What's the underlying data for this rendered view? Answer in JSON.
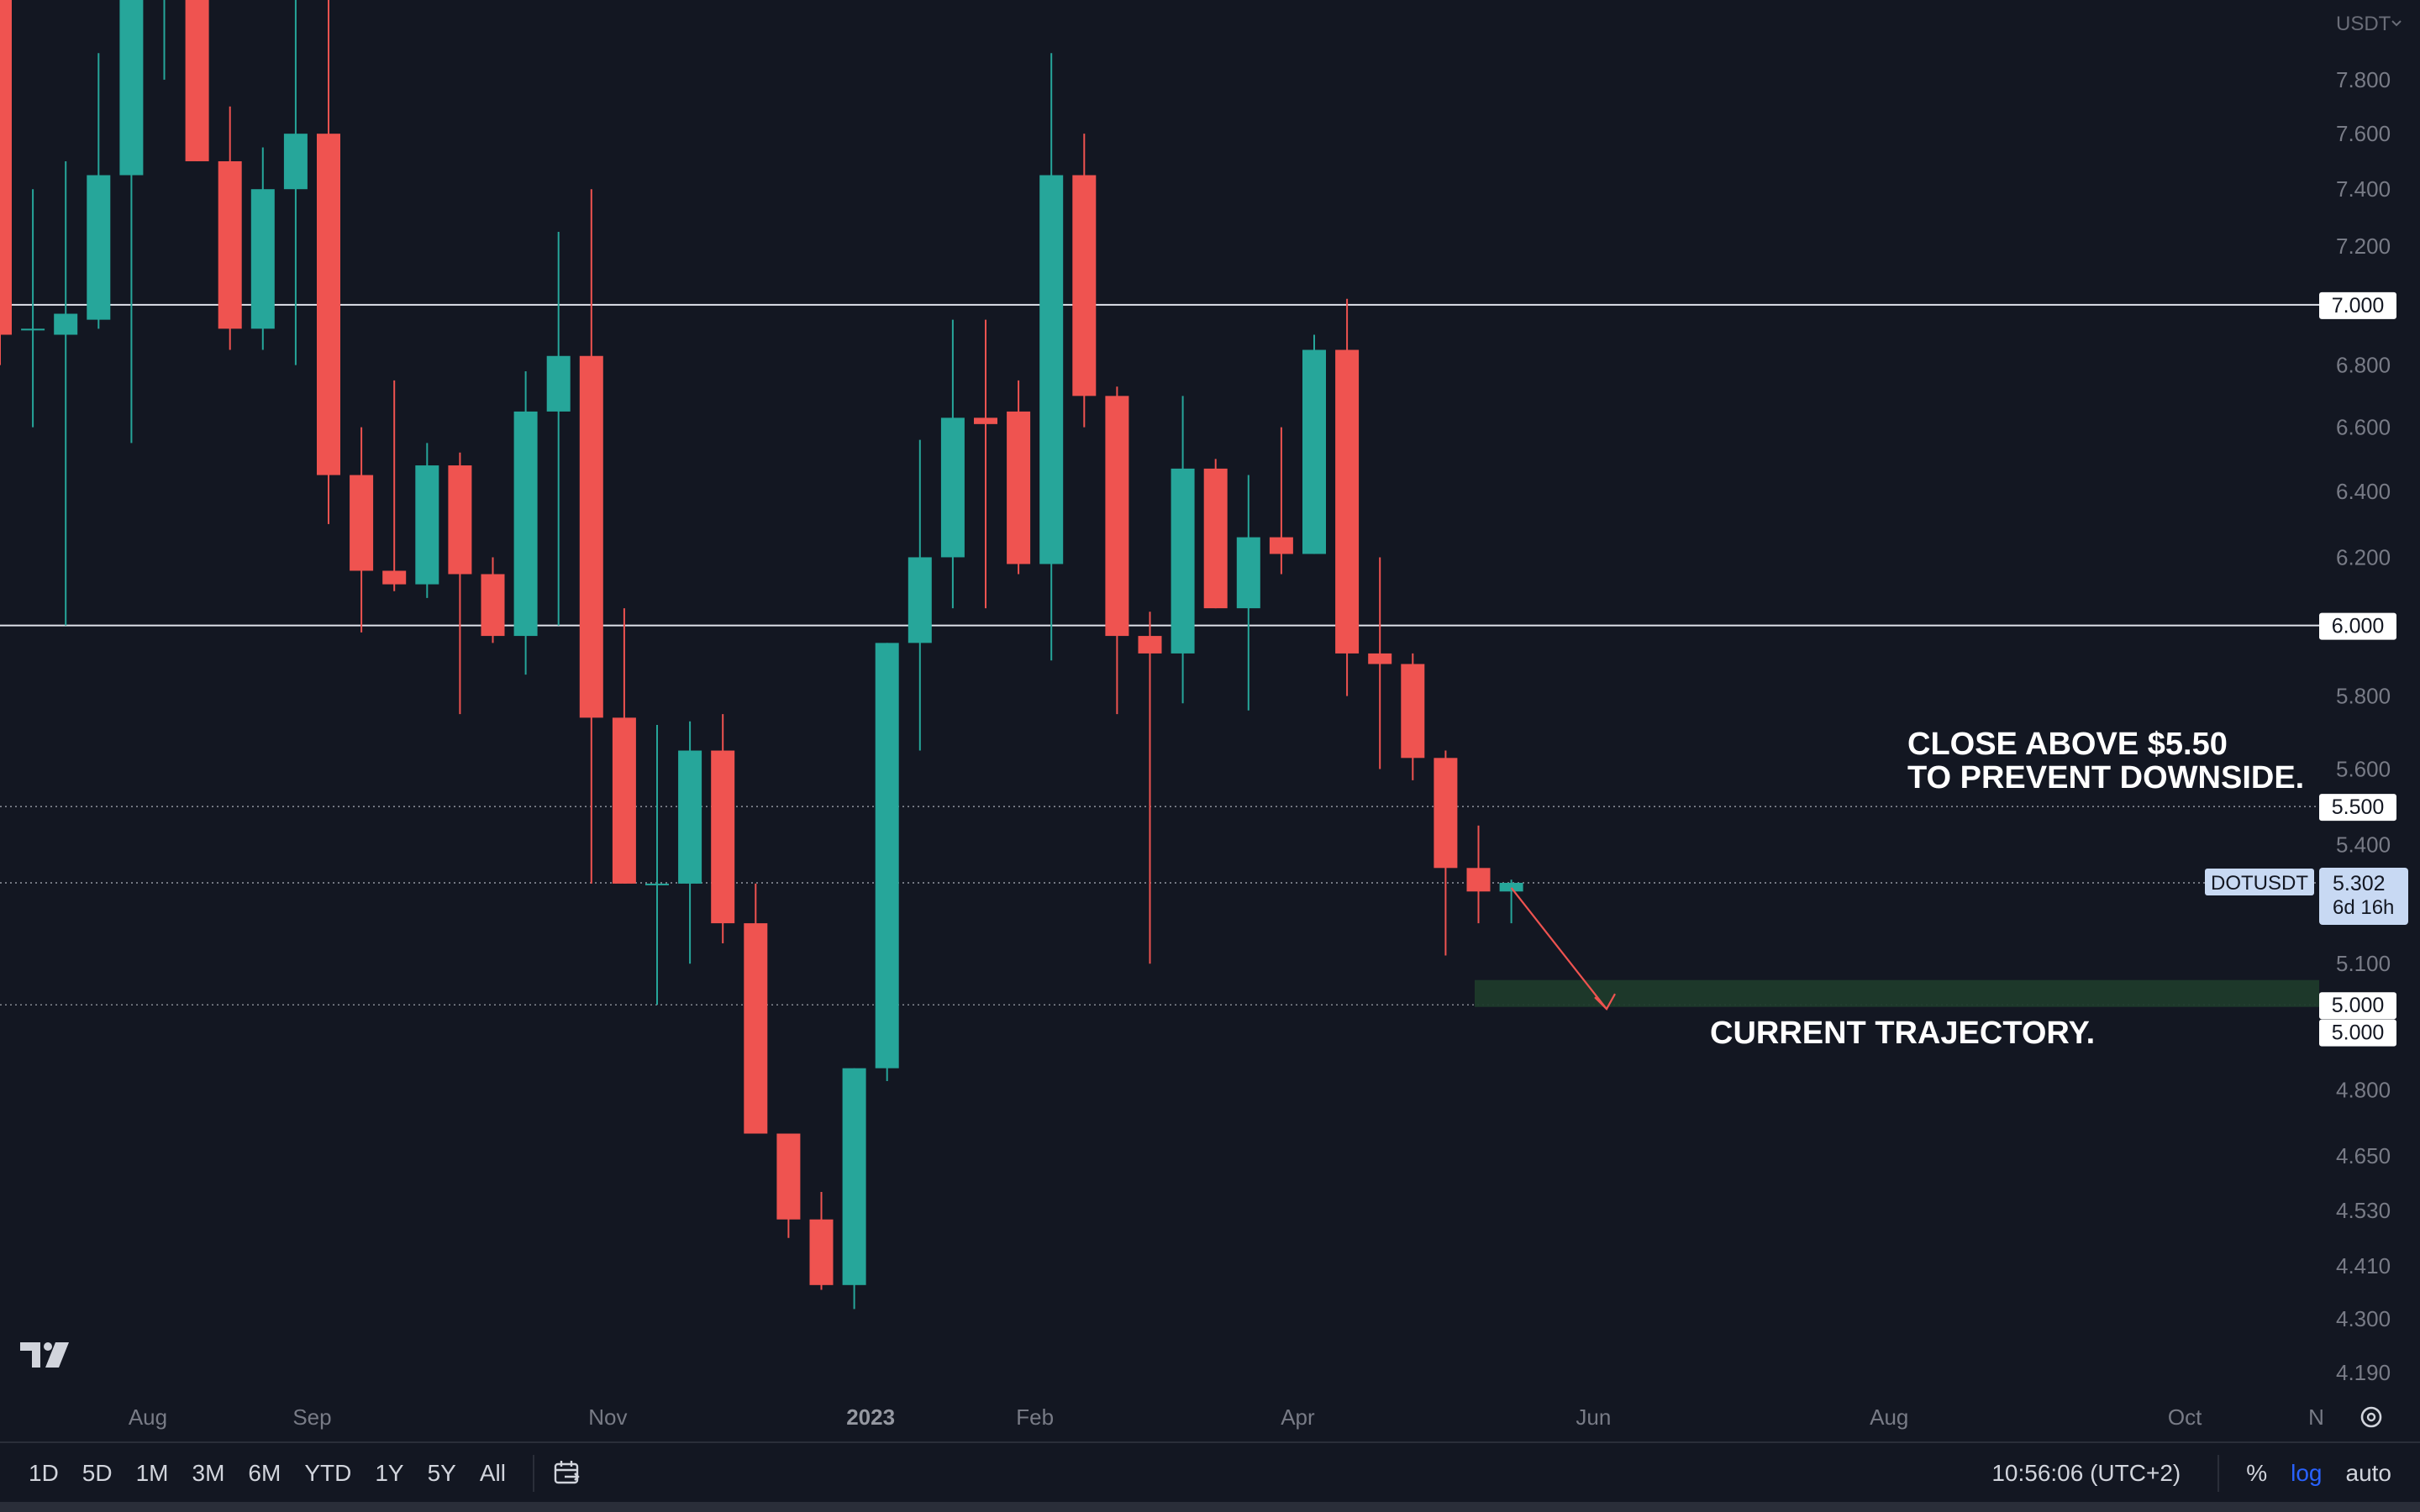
{
  "chart_data": {
    "type": "candlestick",
    "symbol": "DOTUSDT",
    "currency": "USDT",
    "scale": "log",
    "y_range": [
      4.19,
      7.85
    ],
    "y_ticks": [
      "7.800",
      "7.600",
      "7.400",
      "7.200",
      "6.800",
      "6.600",
      "6.400",
      "6.200",
      "5.800",
      "5.600",
      "5.400",
      "5.100",
      "4.800",
      "4.650",
      "4.530",
      "4.410",
      "4.300",
      "4.190"
    ],
    "x_labels": [
      {
        "label": "Aug",
        "idx": 4.5
      },
      {
        "label": "Sep",
        "idx": 9.5
      },
      {
        "label": "Nov",
        "idx": 18.5
      },
      {
        "label": "2023",
        "idx": 26.5,
        "bold": true
      },
      {
        "label": "Feb",
        "idx": 31.5
      },
      {
        "label": "Apr",
        "idx": 39.5
      },
      {
        "label": "Jun",
        "idx": 48.5
      },
      {
        "label": "Aug",
        "idx": 57.5
      },
      {
        "label": "Oct",
        "idx": 66.5
      },
      {
        "label": "N",
        "idx": 70.5
      }
    ],
    "candles": [
      {
        "o": 8.2,
        "h": 8.4,
        "l": 6.8,
        "c": 6.9
      },
      {
        "o": 6.92,
        "h": 7.4,
        "l": 6.6,
        "c": 6.92
      },
      {
        "o": 6.9,
        "h": 7.5,
        "l": 6.0,
        "c": 6.97
      },
      {
        "o": 6.95,
        "h": 7.9,
        "l": 6.92,
        "c": 7.45
      },
      {
        "o": 7.45,
        "h": 8.3,
        "l": 6.55,
        "c": 8.2
      },
      {
        "o": 8.2,
        "h": 8.4,
        "l": 7.8,
        "c": 8.2
      },
      {
        "o": 8.2,
        "h": 8.4,
        "l": 7.5,
        "c": 7.5
      },
      {
        "o": 7.5,
        "h": 7.7,
        "l": 6.85,
        "c": 6.92
      },
      {
        "o": 6.92,
        "h": 7.55,
        "l": 6.85,
        "c": 7.4
      },
      {
        "o": 7.4,
        "h": 8.4,
        "l": 6.8,
        "c": 7.6
      },
      {
        "o": 7.6,
        "h": 8.2,
        "l": 6.3,
        "c": 6.45
      },
      {
        "o": 6.45,
        "h": 6.6,
        "l": 5.98,
        "c": 6.16
      },
      {
        "o": 6.16,
        "h": 6.75,
        "l": 6.1,
        "c": 6.12
      },
      {
        "o": 6.12,
        "h": 6.55,
        "l": 6.08,
        "c": 6.48
      },
      {
        "o": 6.48,
        "h": 6.52,
        "l": 5.75,
        "c": 6.15
      },
      {
        "o": 6.15,
        "h": 6.2,
        "l": 5.95,
        "c": 5.97
      },
      {
        "o": 5.97,
        "h": 6.78,
        "l": 5.86,
        "c": 6.65
      },
      {
        "o": 6.65,
        "h": 7.25,
        "l": 6.0,
        "c": 6.83
      },
      {
        "o": 6.83,
        "h": 7.4,
        "l": 5.3,
        "c": 5.74
      },
      {
        "o": 5.74,
        "h": 6.05,
        "l": 5.3,
        "c": 5.3
      },
      {
        "o": 5.3,
        "h": 5.72,
        "l": 5.0,
        "c": 5.3
      },
      {
        "o": 5.3,
        "h": 5.73,
        "l": 5.1,
        "c": 5.65
      },
      {
        "o": 5.65,
        "h": 5.75,
        "l": 5.15,
        "c": 5.2
      },
      {
        "o": 5.2,
        "h": 5.3,
        "l": 4.72,
        "c": 4.7
      },
      {
        "o": 4.7,
        "h": 4.67,
        "l": 4.47,
        "c": 4.51
      },
      {
        "o": 4.51,
        "h": 4.57,
        "l": 4.36,
        "c": 4.37
      },
      {
        "o": 4.37,
        "h": 4.85,
        "l": 4.32,
        "c": 4.85
      },
      {
        "o": 4.85,
        "h": 5.95,
        "l": 4.82,
        "c": 5.95
      },
      {
        "o": 5.95,
        "h": 6.56,
        "l": 5.65,
        "c": 6.2
      },
      {
        "o": 6.2,
        "h": 6.95,
        "l": 6.05,
        "c": 6.63
      },
      {
        "o": 6.63,
        "h": 6.95,
        "l": 6.05,
        "c": 6.61
      },
      {
        "o": 6.65,
        "h": 6.75,
        "l": 6.15,
        "c": 6.18
      },
      {
        "o": 6.18,
        "h": 7.9,
        "l": 5.9,
        "c": 7.45
      },
      {
        "o": 7.45,
        "h": 7.6,
        "l": 6.6,
        "c": 6.7
      },
      {
        "o": 6.7,
        "h": 6.73,
        "l": 5.75,
        "c": 5.97
      },
      {
        "o": 5.97,
        "h": 6.04,
        "l": 5.1,
        "c": 5.92
      },
      {
        "o": 5.92,
        "h": 6.7,
        "l": 5.78,
        "c": 6.47
      },
      {
        "o": 6.47,
        "h": 6.5,
        "l": 6.05,
        "c": 6.05
      },
      {
        "o": 6.05,
        "h": 6.45,
        "l": 5.76,
        "c": 6.26
      },
      {
        "o": 6.26,
        "h": 6.6,
        "l": 6.15,
        "c": 6.21
      },
      {
        "o": 6.21,
        "h": 6.9,
        "l": 6.21,
        "c": 6.85
      },
      {
        "o": 6.85,
        "h": 7.02,
        "l": 5.8,
        "c": 5.92
      },
      {
        "o": 5.92,
        "h": 6.2,
        "l": 5.6,
        "c": 5.89
      },
      {
        "o": 5.89,
        "h": 5.92,
        "l": 5.57,
        "c": 5.63
      },
      {
        "o": 5.63,
        "h": 5.65,
        "l": 5.12,
        "c": 5.34
      },
      {
        "o": 5.34,
        "h": 5.45,
        "l": 5.2,
        "c": 5.28
      },
      {
        "o": 5.28,
        "h": 5.31,
        "l": 5.2,
        "c": 5.302
      }
    ],
    "h_lines": [
      {
        "price": 7.0,
        "label": "7.000",
        "style": "solid"
      },
      {
        "price": 6.0,
        "label": "6.000",
        "style": "solid"
      },
      {
        "price": 5.5,
        "label": "5.500",
        "style": "dotted"
      },
      {
        "price": 5.0,
        "label": "5.000",
        "style": "dotted"
      }
    ],
    "current_price": {
      "symbol": "DOTUSDT",
      "value": "5.302",
      "countdown": "6d 16h"
    },
    "zone": {
      "label_1": "5.000",
      "label_2": "5.000"
    },
    "annotations": {
      "top": [
        "CLOSE ABOVE $5.50",
        "TO PREVENT DOWNSIDE."
      ],
      "bottom": "CURRENT TRAJECTORY."
    },
    "colors": {
      "up": "#26a69a",
      "down": "#ef5350",
      "background": "#131722",
      "zone": "#1e3a2b",
      "arrow": "#ef5350"
    }
  },
  "toolbar": {
    "timeframes": [
      "1D",
      "5D",
      "1M",
      "3M",
      "6M",
      "YTD",
      "1Y",
      "5Y",
      "All"
    ],
    "clock": "10:56:06 (UTC+2)",
    "percent": "%",
    "log": "log",
    "auto": "auto"
  }
}
